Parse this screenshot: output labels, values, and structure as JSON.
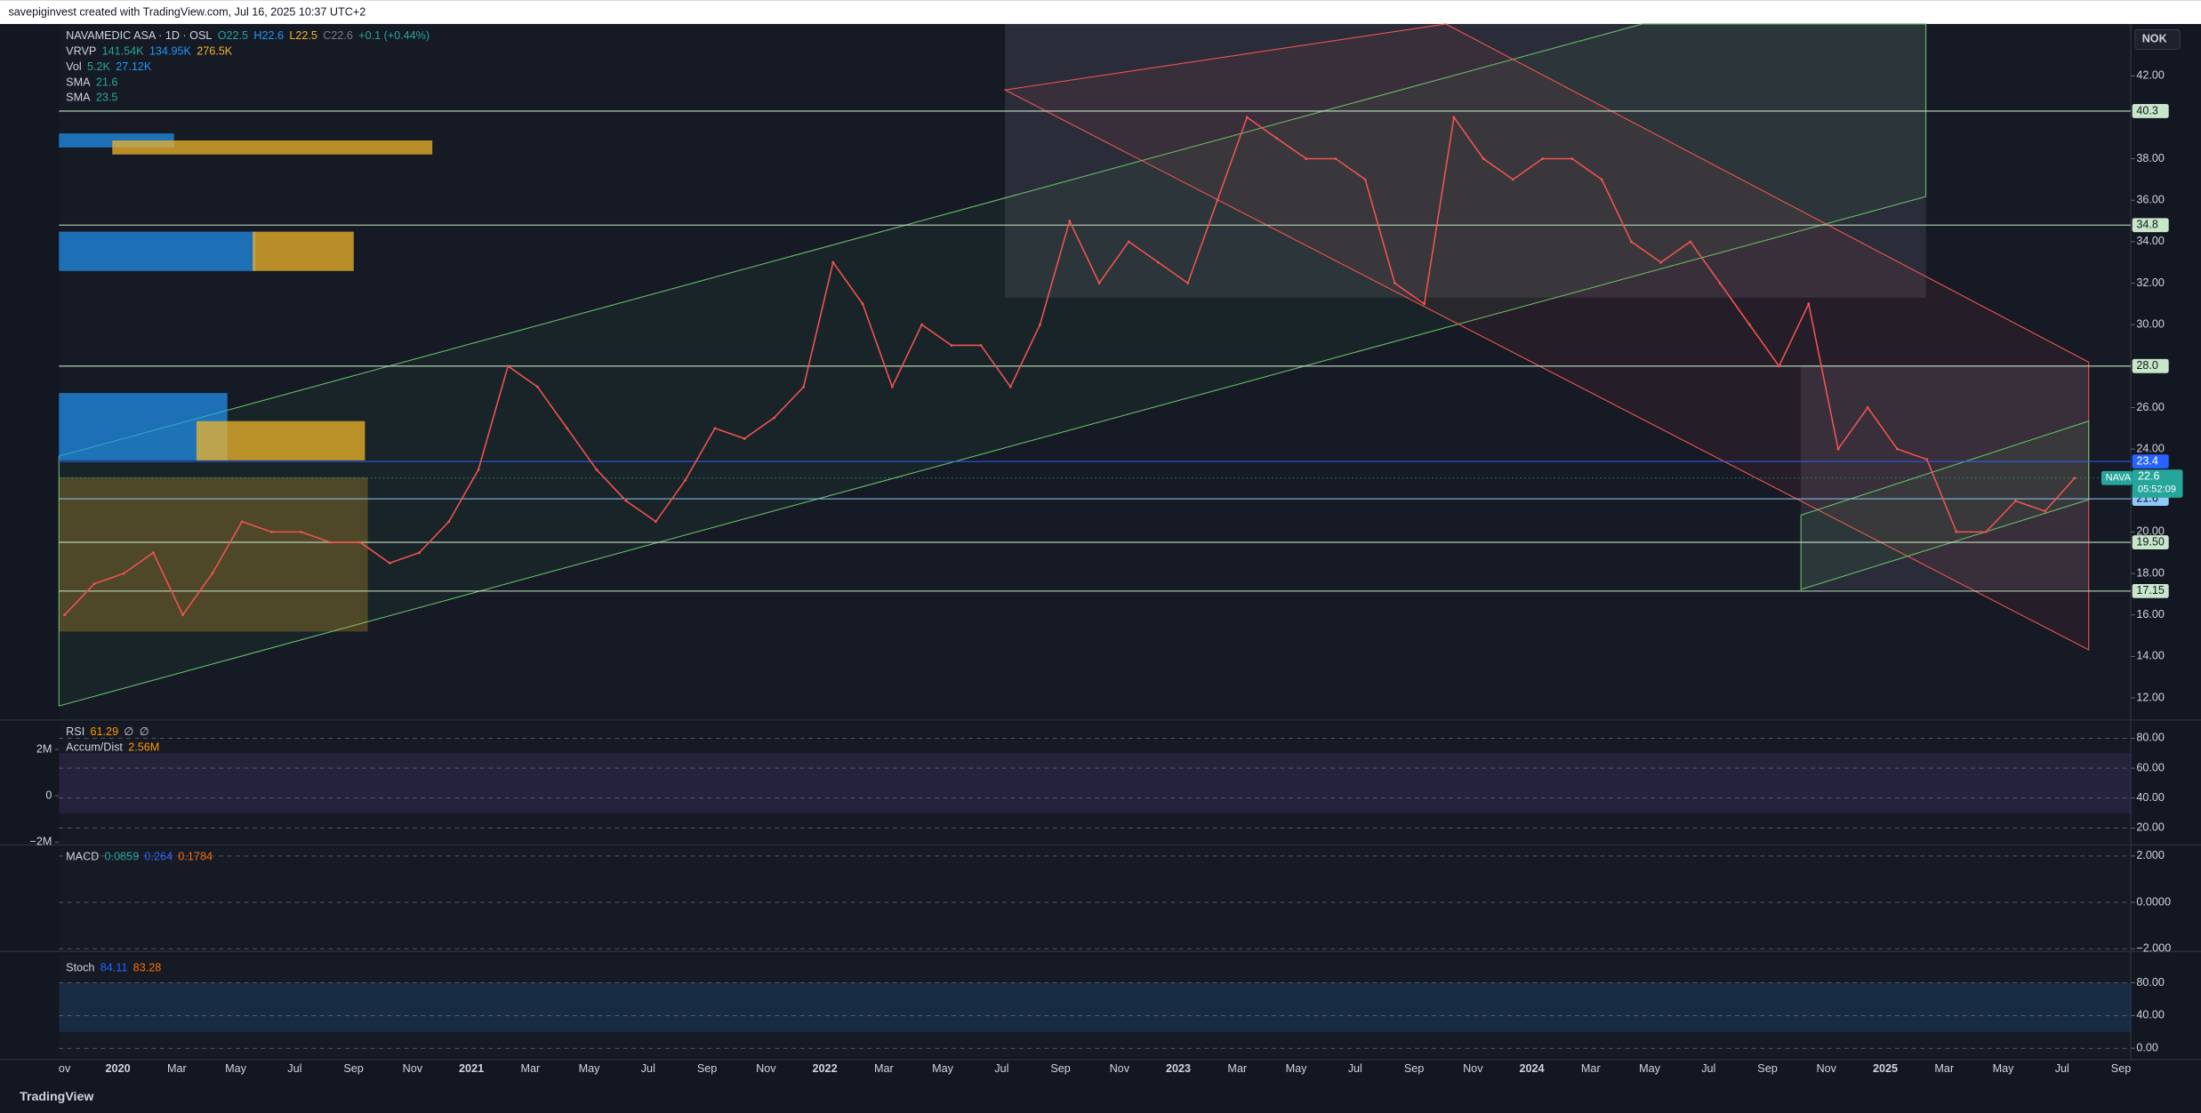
{
  "header": "savepiginvest created with TradingView.com, Jul 16, 2025 10:37 UTC+2",
  "currency": "NOK",
  "legend": [
    {
      "name": "NAVAMEDIC ASA · 1D · OSL",
      "values": [
        "O22.5",
        "H22.6",
        "L22.5",
        "C22.6",
        "+0.1 (+0.44%)"
      ]
    },
    {
      "name": "VRVP",
      "values": [
        "141.54K",
        "134.95K",
        "276.5K"
      ]
    },
    {
      "name": "Vol",
      "values": [
        "5.2K",
        "27.12K"
      ]
    },
    {
      "name": "SMA",
      "values": [
        "21.6"
      ]
    },
    {
      "name": "SMA",
      "values": [
        "23.5"
      ]
    }
  ],
  "price_pane": {
    "ylim": [
      11,
      44.5
    ],
    "yticks": [
      {
        "value": 12,
        "label": "12.00"
      },
      {
        "value": 14,
        "label": "14.00"
      },
      {
        "value": 16,
        "label": "16.00"
      },
      {
        "value": 18,
        "label": "18.00"
      },
      {
        "value": 20,
        "label": "20.00"
      },
      {
        "value": 24,
        "label": "24.00"
      },
      {
        "value": 26,
        "label": "26.00"
      },
      {
        "value": 30,
        "label": "30.00"
      },
      {
        "value": 32,
        "label": "32.00"
      },
      {
        "value": 34,
        "label": "34.00"
      },
      {
        "value": 36,
        "label": "36.00"
      },
      {
        "value": 38,
        "label": "38.00"
      },
      {
        "value": 42,
        "label": "42.00"
      }
    ],
    "levels": [
      {
        "value": 40.3,
        "color": "#c8e6c9"
      },
      {
        "value": 34.8,
        "color": "#c8e6c9"
      },
      {
        "value": {
          "value": 28,
          "label": "28.0"
        },
        "color": "#c8e6c9"
      },
      {
        "value": 23.4,
        "color": "#2962ff"
      },
      {
        "value": 21.6,
        "color": "#90caf9"
      },
      {
        "value": {
          "value": 19.5,
          "label": "19.50"
        },
        "color": "#c8e6c9"
      },
      {
        "value": 17.15,
        "color": "#c8e6c9"
      }
    ],
    "last": {
      "symbol": "NAVA",
      "value": 22.6,
      "countdown": "05:52:09"
    },
    "closes": [
      16,
      17.5,
      18,
      19,
      16,
      18,
      20.5,
      20,
      20,
      19.5,
      19.5,
      18.5,
      19,
      20.5,
      23,
      28,
      27,
      25,
      23,
      21.5,
      20.5,
      22.5,
      25,
      24.5,
      25.5,
      27,
      33,
      31,
      27,
      30,
      29,
      29,
      27,
      30,
      35,
      32,
      34,
      33,
      32,
      36,
      40,
      39,
      38,
      38,
      37,
      32,
      31,
      40,
      38,
      37,
      38,
      38,
      37,
      34,
      33,
      34,
      32,
      30,
      28,
      31,
      24,
      26,
      24,
      23.5,
      20,
      20,
      21.5,
      21,
      22.6
    ],
    "color": "#ef5350"
  },
  "rsi_pane": {
    "legend": [
      {
        "name": "RSI",
        "values": [
          "61.29",
          "∅",
          "∅"
        ]
      },
      {
        "name": "Accum/Dist",
        "values": [
          "2.56M"
        ]
      }
    ],
    "ylim": [
      10.6,
      90.3
    ],
    "yticks": [
      {
        "value": 80,
        "label": "80.00"
      },
      {
        "value": 60,
        "label": "60.00"
      },
      {
        "value": 40,
        "label": "40.00"
      },
      {
        "value": 20,
        "label": "20.00"
      }
    ],
    "y2lim": [
      -2000000,
      3150000
    ],
    "y2ticks": [
      {
        "value": 2000000,
        "label": "2M"
      },
      0,
      {
        "value": -2000000,
        "label": "−2M"
      }
    ]
  },
  "macd_pane": {
    "legend": [
      {
        "name": "MACD",
        "values": [
          "0.0859",
          "0.264",
          "0.1784"
        ]
      }
    ],
    "ylim": [
      -2.06,
      2.36
    ],
    "yticks": [
      {
        "value": 2,
        "label": "2.000"
      },
      {
        "value": 0,
        "label": "0.0000"
      },
      {
        "value": -2,
        "label": "−2.000"
      }
    ]
  },
  "stoch_pane": {
    "legend": [
      {
        "name": "Stoch",
        "values": [
          "84.11",
          "83.28"
        ]
      }
    ],
    "ylim": [
      -10.4,
      114.8
    ],
    "yticks": [
      {
        "value": 80,
        "label": "80.00"
      },
      {
        "value": 40,
        "label": "40.00"
      },
      {
        "value": 0,
        "label": "0.00"
      }
    ]
  },
  "time_axis": [
    "ov",
    "2020",
    "Mar",
    "May",
    "Jul",
    "Sep",
    "Nov",
    "2021",
    "Mar",
    "May",
    "Jul",
    "Sep",
    "Nov",
    "2022",
    "Mar",
    "May",
    "Jul",
    "Sep",
    "Nov",
    "2023",
    "Mar",
    "May",
    "Jul",
    "Sep",
    "Nov",
    "2024",
    "Mar",
    "May",
    "Jul",
    "Sep",
    "Nov",
    "2025",
    "Mar",
    "May",
    "Jul",
    "Sep"
  ],
  "footer": "TradingView"
}
